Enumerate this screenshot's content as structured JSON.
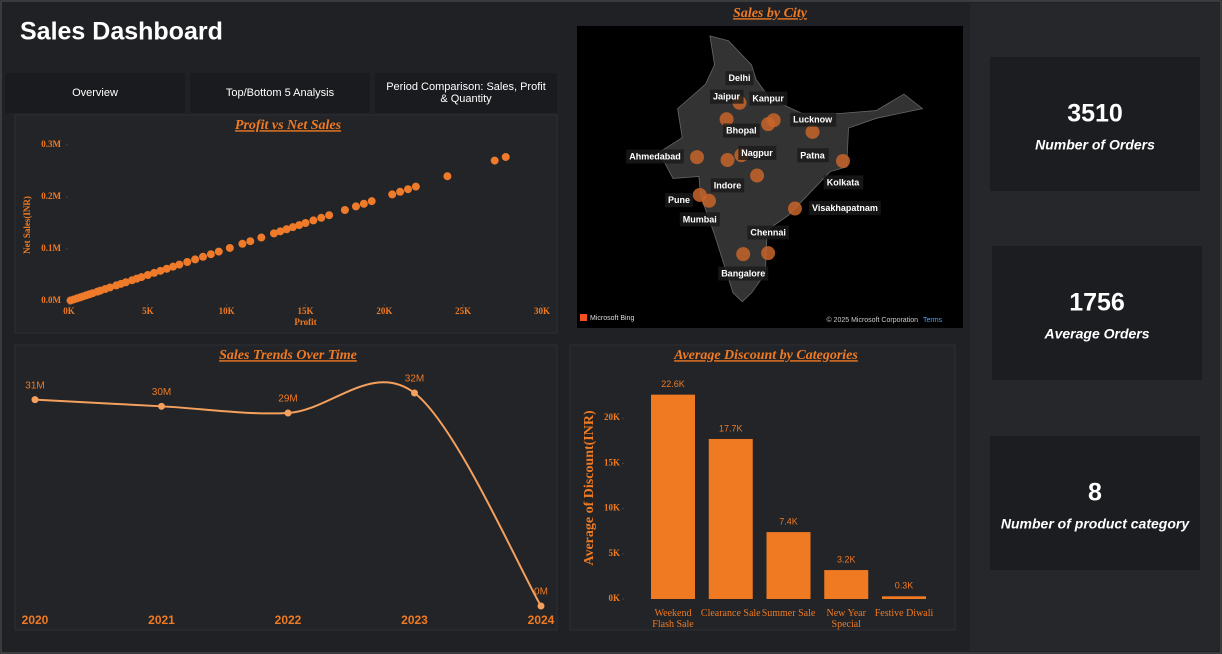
{
  "header": {
    "title": "Sales Dashboard"
  },
  "tabs": [
    "Overview",
    "Top/Bottom 5 Analysis",
    "Period Comparison: Sales, Profit & Quantity"
  ],
  "kpis": [
    {
      "value": 3510,
      "label": "Number of Orders"
    },
    {
      "value": 1756,
      "label": "Average Orders"
    },
    {
      "value": 8,
      "label": "Number of product category"
    }
  ],
  "map": {
    "title": "Sales by City",
    "cities": [
      {
        "name": "Delhi",
        "lon": 77.2,
        "lat": 28.6
      },
      {
        "name": "Jaipur",
        "lon": 75.8,
        "lat": 26.9
      },
      {
        "name": "Kanpur",
        "lon": 80.3,
        "lat": 26.4
      },
      {
        "name": "Lucknow",
        "lon": 80.9,
        "lat": 26.8
      },
      {
        "name": "Bhopal",
        "lon": 77.4,
        "lat": 23.2
      },
      {
        "name": "Ahmedabad",
        "lon": 72.6,
        "lat": 23.0
      },
      {
        "name": "Nagpur",
        "lon": 79.1,
        "lat": 21.1
      },
      {
        "name": "Patna",
        "lon": 85.1,
        "lat": 25.6
      },
      {
        "name": "Kolkata",
        "lon": 88.4,
        "lat": 22.6
      },
      {
        "name": "Indore",
        "lon": 75.9,
        "lat": 22.7
      },
      {
        "name": "Pune",
        "lon": 73.9,
        "lat": 18.5
      },
      {
        "name": "Mumbai",
        "lon": 72.9,
        "lat": 19.1
      },
      {
        "name": "Visakhapatnam",
        "lon": 83.2,
        "lat": 17.7
      },
      {
        "name": "Chennai",
        "lon": 80.3,
        "lat": 13.1
      },
      {
        "name": "Bangalore",
        "lon": 77.6,
        "lat": 13.0
      }
    ],
    "provider": "Microsoft Bing",
    "copyright": "© 2025 Microsoft Corporation",
    "terms": "Terms"
  },
  "chart_data": [
    {
      "type": "scatter",
      "title": "Profit vs Net Sales",
      "x_label": "Profit",
      "y_label": "Net Sales(INR)",
      "color": "#ee7a2a",
      "x": [
        100,
        300,
        500,
        700,
        900,
        1100,
        1300,
        1500,
        1800,
        2000,
        2300,
        2600,
        3000,
        3300,
        3600,
        4000,
        4300,
        4600,
        5000,
        5400,
        5800,
        6200,
        6600,
        7000,
        7500,
        8000,
        8500,
        9000,
        9500,
        10200,
        11000,
        11500,
        12200,
        13000,
        13400,
        13800,
        14200,
        14600,
        15000,
        15500,
        16000,
        16500,
        17500,
        18200,
        18700,
        19200,
        20500,
        21000,
        21500,
        22000,
        24000,
        27000,
        27700
      ],
      "values": [
        1000,
        3000,
        5000,
        7000,
        9000,
        11000,
        13000,
        15000,
        18000,
        20000,
        23000,
        26000,
        30000,
        33000,
        36000,
        40000,
        43000,
        46000,
        50000,
        54000,
        58000,
        62000,
        66000,
        70000,
        75000,
        80000,
        85000,
        90000,
        95000,
        102000,
        110000,
        115000,
        122000,
        130000,
        134000,
        138000,
        142000,
        146000,
        150000,
        155000,
        160000,
        165000,
        175000,
        182000,
        187000,
        192000,
        205000,
        210000,
        215000,
        220000,
        240000,
        270000,
        277000
      ],
      "xlim": [
        0,
        30000
      ],
      "ylim": [
        0,
        300000
      ],
      "xticks": [
        {
          "value": 0,
          "label": "0K"
        },
        {
          "value": 5000,
          "label": "5K"
        },
        {
          "value": 10000,
          "label": "10K"
        },
        {
          "value": 15000,
          "label": "15K"
        },
        {
          "value": 20000,
          "label": "20K"
        },
        {
          "value": 25000,
          "label": "25K"
        },
        {
          "value": 30000,
          "label": "30K"
        }
      ],
      "yticks": [
        {
          "value": 0,
          "label": "0.0M"
        },
        {
          "value": 100000,
          "label": "0.1M"
        },
        {
          "value": 200000,
          "label": "0.2M"
        },
        {
          "value": 300000,
          "label": "0.3M"
        }
      ]
    },
    {
      "type": "line",
      "title": "Sales Trends Over Time",
      "color": "#f5a05c",
      "categories": [
        "2020",
        "2021",
        "2022",
        "2023",
        "2024"
      ],
      "values": [
        31,
        30,
        29,
        32,
        0
      ],
      "value_labels": [
        "31M",
        "30M",
        "29M",
        "32M",
        "0M"
      ]
    },
    {
      "type": "bar",
      "title": "Average Discount by Categories",
      "y_label": "Average of Discount(INR)",
      "color": "#f07a22",
      "categories": [
        "Weekend Flash Sale",
        "Clearance Sale",
        "Summer Sale",
        "New Year Special",
        "Festive Diwali"
      ],
      "values": [
        22600,
        17700,
        7400,
        3200,
        300
      ],
      "value_labels": [
        "22.6K",
        "17.7K",
        "7.4K",
        "3.2K",
        "0.3K"
      ],
      "ylim": [
        0,
        24000
      ],
      "yticks": [
        {
          "value": 0,
          "label": "0K"
        },
        {
          "value": 5000,
          "label": "5K"
        },
        {
          "value": 10000,
          "label": "10K"
        },
        {
          "value": 15000,
          "label": "15K"
        },
        {
          "value": 20000,
          "label": "20K"
        }
      ]
    }
  ]
}
